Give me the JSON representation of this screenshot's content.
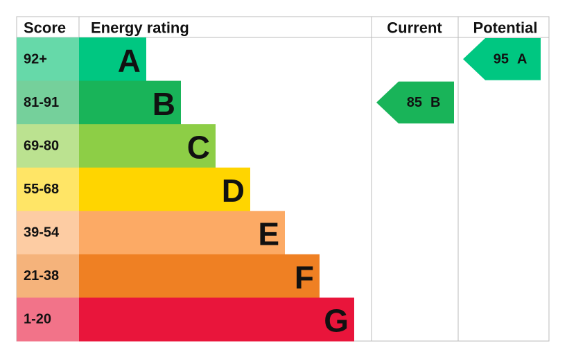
{
  "header": {
    "score": "Score",
    "energy_rating": "Energy rating",
    "current": "Current",
    "potential": "Potential"
  },
  "bands": [
    {
      "score": "92+",
      "letter": "A",
      "color": "#00c781",
      "score_color": "#66d9a9"
    },
    {
      "score": "81-91",
      "letter": "B",
      "color": "#19b459",
      "score_color": "#75d09b"
    },
    {
      "score": "69-80",
      "letter": "C",
      "color": "#8dce46",
      "score_color": "#bbe290"
    },
    {
      "score": "55-68",
      "letter": "D",
      "color": "#ffd500",
      "score_color": "#ffe566"
    },
    {
      "score": "39-54",
      "letter": "E",
      "color": "#fcaa65",
      "score_color": "#fdcca3"
    },
    {
      "score": "21-38",
      "letter": "F",
      "color": "#ef8023",
      "score_color": "#f5b37b"
    },
    {
      "score": "1-20",
      "letter": "G",
      "color": "#e9153b",
      "score_color": "#f27389"
    }
  ],
  "current": {
    "value": 85,
    "letter": "B"
  },
  "potential": {
    "value": 95,
    "letter": "A"
  }
}
